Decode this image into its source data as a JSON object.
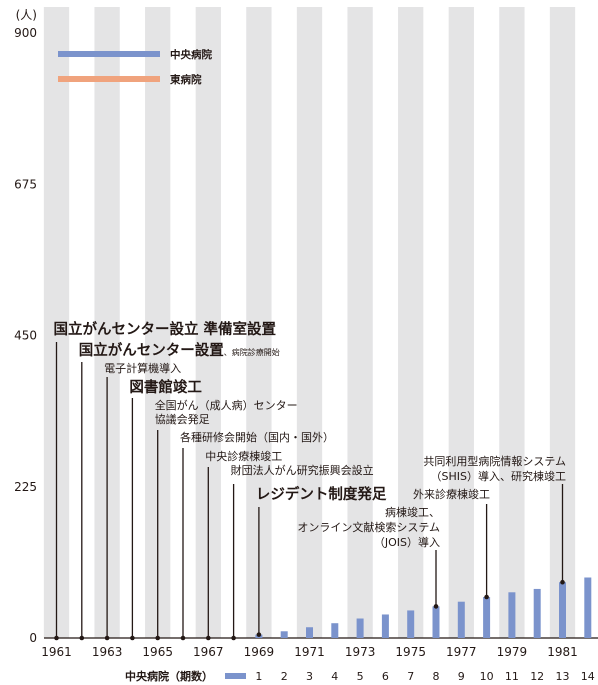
{
  "chart_data": {
    "type": "bar",
    "y_unit": "(人)",
    "ylim": [
      0,
      900
    ],
    "yticks": [
      "0",
      "225",
      "450",
      "675",
      "900"
    ],
    "x": [
      1961,
      1962,
      1963,
      1964,
      1965,
      1966,
      1967,
      1968,
      1969,
      1970,
      1971,
      1972,
      1973,
      1974,
      1975,
      1976,
      1977,
      1978,
      1979,
      1980,
      1981,
      1982
    ],
    "xtick_labels": [
      "1961",
      "1963",
      "1965",
      "1967",
      "1969",
      "1971",
      "1973",
      "1975",
      "1977",
      "1979",
      "1981"
    ],
    "series": [
      {
        "name": "中央病院",
        "color": "#7b93cc",
        "values": [
          0,
          0,
          0,
          0,
          0,
          0,
          0,
          0,
          5,
          10,
          16,
          22,
          29,
          35,
          41,
          47,
          54,
          61,
          68,
          73,
          83,
          90
        ]
      },
      {
        "name": "東病院",
        "color": "#f0a37d",
        "values": [
          0,
          0,
          0,
          0,
          0,
          0,
          0,
          0,
          0,
          0,
          0,
          0,
          0,
          0,
          0,
          0,
          0,
          0,
          0,
          0,
          0,
          0
        ]
      }
    ],
    "legend_position": "top-left",
    "grid": "alternating vertical bands",
    "band_color": "#e4e4e5",
    "period_axis": {
      "title": "中央病院（期数）",
      "numbers": [
        "1",
        "2",
        "3",
        "4",
        "5",
        "6",
        "7",
        "8",
        "9",
        "10",
        "11",
        "12",
        "13",
        "14"
      ],
      "start_year": 1969
    },
    "annotations": [
      {
        "year": 1961,
        "value": 0,
        "style": "bold",
        "lines": [
          "国立がんセンター設立 準備室設置"
        ]
      },
      {
        "year": 1962,
        "value": 0,
        "style": "bold",
        "lines": [
          "国立がんセンター設置"
        ],
        "suffix": "、病院診療開始"
      },
      {
        "year": 1963,
        "value": 0,
        "style": "normal",
        "lines": [
          "電子計算機導入"
        ]
      },
      {
        "year": 1964,
        "value": 0,
        "style": "bold",
        "lines": [
          "図書館竣工"
        ]
      },
      {
        "year": 1965,
        "value": 0,
        "style": "normal",
        "lines": [
          "全国がん（成人病）センター",
          "協議会発足"
        ]
      },
      {
        "year": 1966,
        "value": 0,
        "style": "normal",
        "lines": [
          "各種研修会開始（国内・国外）"
        ]
      },
      {
        "year": 1967,
        "value": 0,
        "style": "normal",
        "lines": [
          "中央診療棟竣工"
        ]
      },
      {
        "year": 1968,
        "value": 0,
        "style": "normal",
        "lines": [
          "財団法人がん研究振興会設立"
        ]
      },
      {
        "year": 1969,
        "value": 5,
        "style": "bold",
        "lines": [
          "レジデント制度発足"
        ]
      },
      {
        "year": 1976,
        "value": 47,
        "style": "normal",
        "align": "end",
        "lines": [
          "病棟竣工、",
          "オンライン文献検索システム",
          "（JOIS）導入"
        ]
      },
      {
        "year": 1978,
        "value": 61,
        "style": "normal",
        "align": "end",
        "lines": [
          "外来診療棟竣工"
        ]
      },
      {
        "year": 1981,
        "value": 83,
        "style": "normal",
        "align": "end",
        "lines": [
          "共同利用型病院情報システム",
          "（SHIS）導入、研究棟竣工"
        ]
      }
    ]
  }
}
